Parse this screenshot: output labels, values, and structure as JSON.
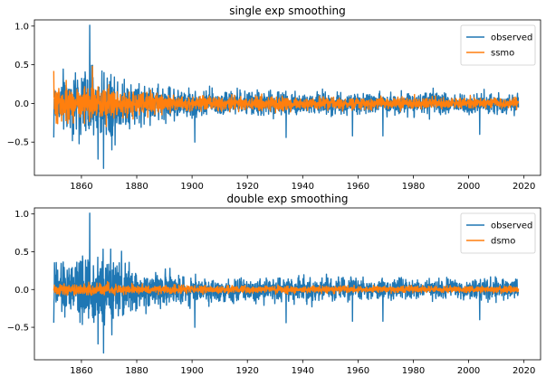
{
  "chart_data": [
    {
      "type": "line",
      "title": "single exp smoothing",
      "xlim": [
        1843,
        2026
      ],
      "ylim": [
        -0.93,
        1.08
      ],
      "xticks": [
        1860,
        1880,
        1900,
        1920,
        1940,
        1960,
        1980,
        2000,
        2020
      ],
      "yticks": [
        -0.5,
        0.0,
        0.5,
        1.0
      ],
      "ytick_labels": [
        "−0.5",
        "0.0",
        "0.5",
        "1.0"
      ],
      "legend_position": "top-right",
      "grid": false,
      "series": [
        {
          "name": "observed",
          "color": "#1f77b4",
          "x_range": [
            1850,
            2018
          ],
          "amplitude_by_year": [
            [
              1850,
              0.32
            ],
            [
              1860,
              0.45
            ],
            [
              1870,
              0.45
            ],
            [
              1880,
              0.28
            ],
            [
              1900,
              0.18
            ],
            [
              1920,
              0.16
            ],
            [
              1940,
              0.17
            ],
            [
              1960,
              0.14
            ],
            [
              2000,
              0.15
            ],
            [
              2018,
              0.13
            ]
          ],
          "notable_points": [
            [
              1850,
              -0.44
            ],
            [
              1863,
              1.01
            ],
            [
              1866,
              -0.72
            ],
            [
              1868,
              -0.84
            ],
            [
              1871,
              -0.6
            ],
            [
              1901,
              -0.5
            ],
            [
              1934,
              -0.44
            ],
            [
              1958,
              -0.42
            ],
            [
              1969,
              -0.42
            ],
            [
              2004,
              -0.4
            ]
          ]
        },
        {
          "name": "ssmo",
          "color": "#ff7f0e",
          "x_range": [
            1850,
            2018
          ],
          "amplitude_by_year": [
            [
              1850,
              0.22
            ],
            [
              1860,
              0.25
            ],
            [
              1870,
              0.22
            ],
            [
              1880,
              0.15
            ],
            [
              1900,
              0.1
            ],
            [
              1940,
              0.09
            ],
            [
              1980,
              0.08
            ],
            [
              2018,
              0.07
            ]
          ],
          "notable_points": [
            [
              1850,
              0.42
            ],
            [
              1864,
              0.48
            ],
            [
              1869,
              -0.3
            ]
          ]
        }
      ]
    },
    {
      "type": "line",
      "title": "double exp smoothing",
      "xlim": [
        1843,
        2026
      ],
      "ylim": [
        -0.93,
        1.08
      ],
      "xticks": [
        1860,
        1880,
        1900,
        1920,
        1940,
        1960,
        1980,
        2000,
        2020
      ],
      "yticks": [
        -0.5,
        0.0,
        0.5,
        1.0
      ],
      "ytick_labels": [
        "−0.5",
        "0.0",
        "0.5",
        "1.0"
      ],
      "legend_position": "top-right",
      "grid": false,
      "series": [
        {
          "name": "observed",
          "color": "#1f77b4",
          "x_range": [
            1850,
            2018
          ],
          "amplitude_by_year": [
            [
              1850,
              0.32
            ],
            [
              1860,
              0.45
            ],
            [
              1870,
              0.45
            ],
            [
              1880,
              0.28
            ],
            [
              1900,
              0.18
            ],
            [
              1920,
              0.16
            ],
            [
              1940,
              0.17
            ],
            [
              1960,
              0.14
            ],
            [
              2000,
              0.15
            ],
            [
              2018,
              0.13
            ]
          ],
          "notable_points": [
            [
              1850,
              -0.44
            ],
            [
              1863,
              1.01
            ],
            [
              1866,
              -0.72
            ],
            [
              1868,
              -0.84
            ],
            [
              1871,
              -0.6
            ],
            [
              1901,
              -0.5
            ],
            [
              1934,
              -0.44
            ],
            [
              1958,
              -0.42
            ],
            [
              1969,
              -0.42
            ],
            [
              2004,
              -0.4
            ]
          ]
        },
        {
          "name": "dsmo",
          "color": "#ff7f0e",
          "x_range": [
            1850,
            2018
          ],
          "amplitude_by_year": [
            [
              1850,
              0.07
            ],
            [
              1865,
              0.08
            ],
            [
              1880,
              0.06
            ],
            [
              1920,
              0.05
            ],
            [
              1960,
              0.045
            ],
            [
              2018,
              0.045
            ]
          ],
          "notable_points": []
        }
      ]
    }
  ]
}
